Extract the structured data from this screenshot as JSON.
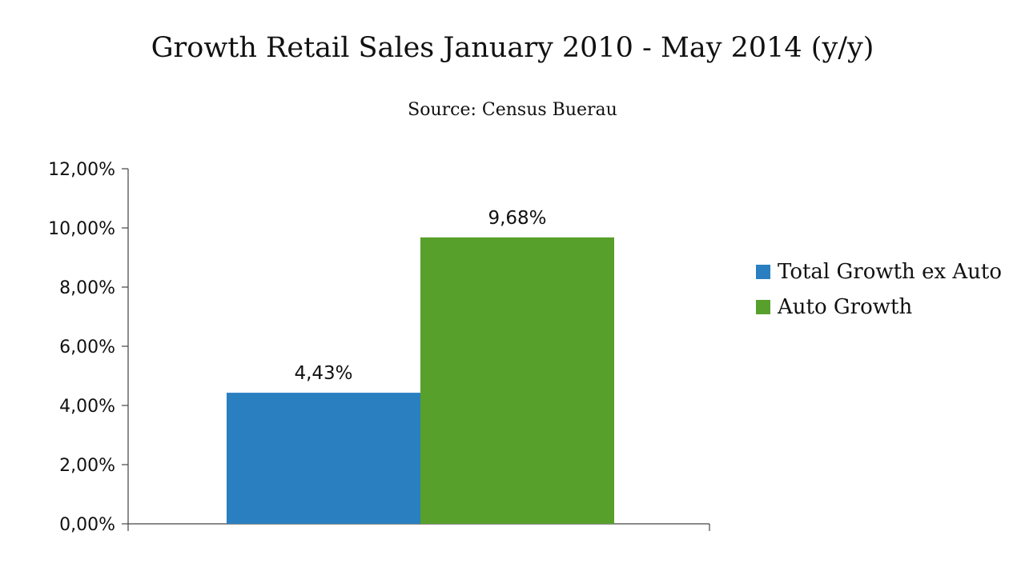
{
  "chart_data": {
    "type": "bar",
    "title": "Growth Retail Sales January 2010 - May 2014 (y/y)",
    "subtitle": "Source: Census Buerau",
    "xlabel": "",
    "ylabel": "",
    "ylim": [
      0,
      12
    ],
    "yticks": [
      0,
      2,
      4,
      6,
      8,
      10,
      12
    ],
    "ytick_labels": [
      "0,00%",
      "2,00%",
      "4,00%",
      "6,00%",
      "8,00%",
      "10,00%",
      "12,00%"
    ],
    "categories": [
      ""
    ],
    "series": [
      {
        "name": "Total Growth ex Auto",
        "values": [
          4.43
        ],
        "data_label": "4,43%",
        "color": "#2a7fc0"
      },
      {
        "name": "Auto Growth",
        "values": [
          9.68
        ],
        "data_label": "9,68%",
        "color": "#57a02b"
      }
    ],
    "grid": false,
    "legend": "right"
  }
}
